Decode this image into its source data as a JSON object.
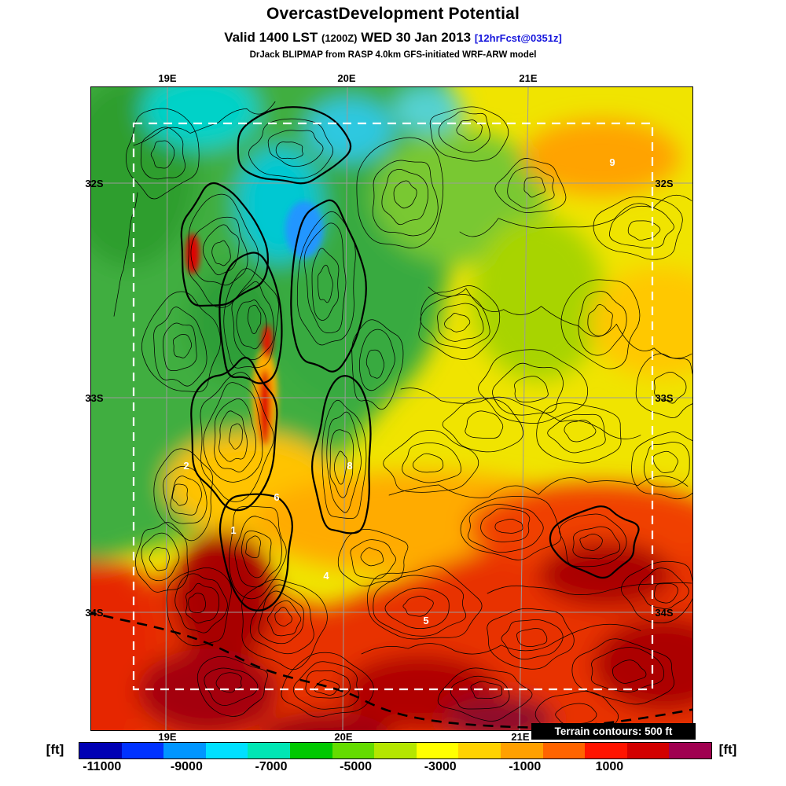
{
  "header": {
    "title": "OvercastDevelopment Potential",
    "valid": {
      "prefix": "Valid 1400 LST",
      "zulu": "(1200Z)",
      "date": "WED 30 Jan 2013",
      "fcst": "[12hrFcst@0351z]"
    },
    "model_line": "DrJack BLIPMAP from RASP 4.0km GFS-initiated WRF-ARW model"
  },
  "map": {
    "x_ticks": [
      "19E",
      "20E",
      "21E"
    ],
    "y_ticks": [
      "32S",
      "33S",
      "34S"
    ],
    "spots": [
      {
        "text": "9"
      },
      {
        "text": "2"
      },
      {
        "text": "8"
      },
      {
        "text": "6"
      },
      {
        "text": "1"
      },
      {
        "text": "4"
      },
      {
        "text": "5"
      }
    ],
    "terrain_note": "Terrain contours: 500 ft"
  },
  "colorbar": {
    "unit": "[ft]",
    "tick_labels": [
      "-11000",
      "-9000",
      "-7000",
      "-5000",
      "-3000",
      "-1000",
      "1000"
    ],
    "colors": [
      "#0000b4",
      "#0032ff",
      "#0096ff",
      "#00e0ff",
      "#00e6b4",
      "#00c800",
      "#64dc00",
      "#b4e600",
      "#ffff00",
      "#ffd200",
      "#ffa000",
      "#ff6400",
      "#ff1400",
      "#d20000",
      "#a00050"
    ]
  }
}
